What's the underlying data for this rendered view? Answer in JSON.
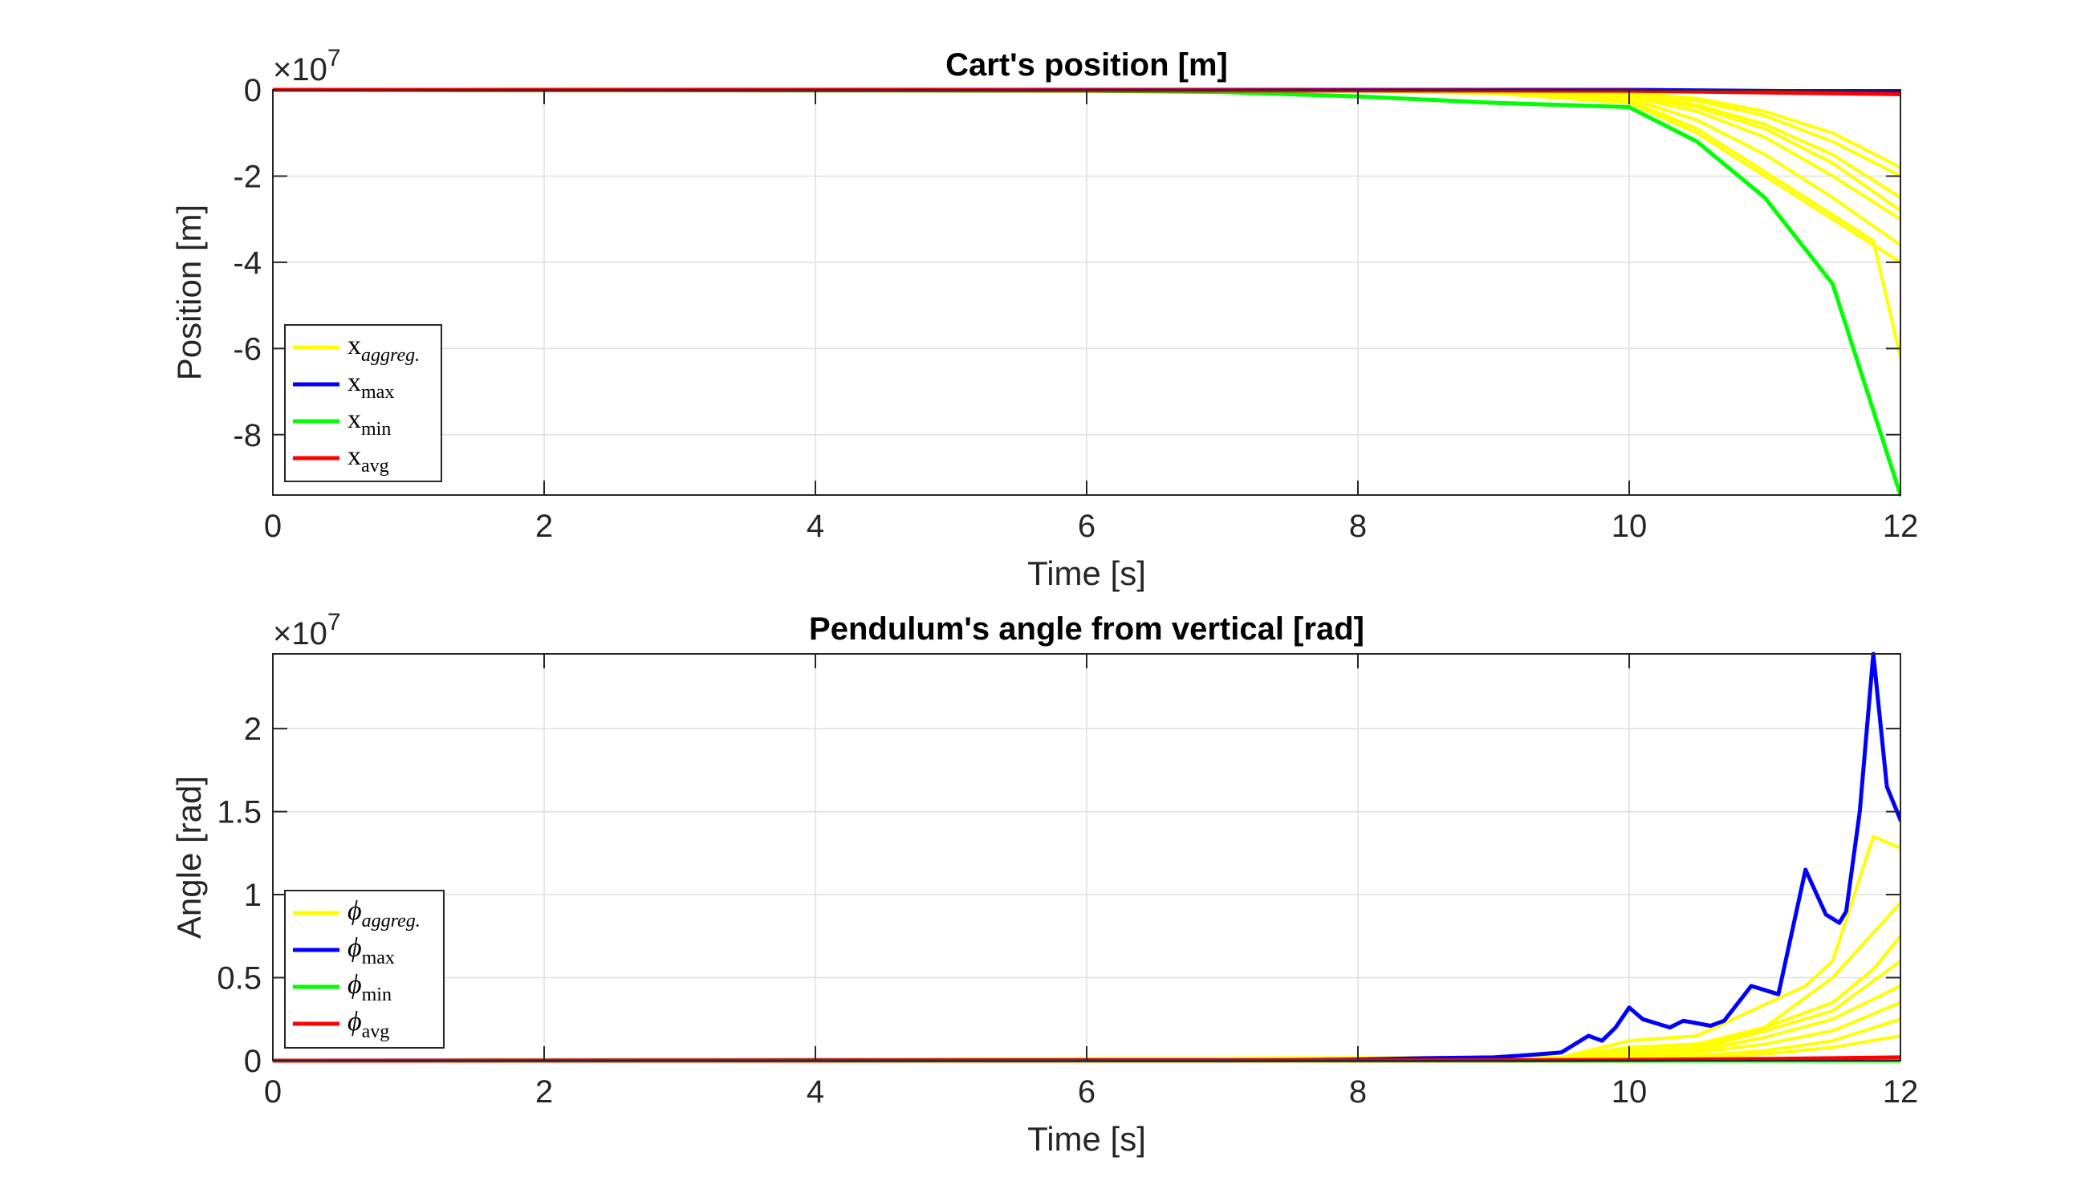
{
  "chart_data": [
    {
      "type": "line",
      "title": "Cart's position [m]",
      "xlabel": "Time [s]",
      "ylabel": "Position [m]",
      "exponent_label": "×10",
      "exponent_power": "7",
      "xlim": [
        0,
        12
      ],
      "ylim": [
        -9.4,
        0
      ],
      "xticks": [
        0,
        2,
        4,
        6,
        8,
        10,
        12
      ],
      "xtick_labels": [
        "0",
        "2",
        "4",
        "6",
        "8",
        "10",
        "12"
      ],
      "yticks": [
        0,
        -2,
        -4,
        -6,
        -8
      ],
      "ytick_labels": [
        "0",
        "-2",
        "-4",
        "-6",
        "-8"
      ],
      "grid": true,
      "legend_position": "lower-left",
      "legend": [
        {
          "base": "x",
          "sub": "aggreg.",
          "sub_italic": true,
          "color": "#ffff00"
        },
        {
          "base": "x",
          "sub": "max",
          "sub_italic": false,
          "color": "#0000ff"
        },
        {
          "base": "x",
          "sub": "min",
          "sub_italic": false,
          "color": "#00ff00"
        },
        {
          "base": "x",
          "sub": "avg",
          "sub_italic": false,
          "color": "#ff0000"
        }
      ],
      "series": [
        {
          "legend_index": 0,
          "color": "#ffff00",
          "x": [
            0,
            8,
            9,
            10,
            10.5,
            11,
            11.5,
            12
          ],
          "y": [
            0,
            -0.01,
            -0.03,
            -0.06,
            -0.2,
            -0.5,
            -1.0,
            -1.8
          ]
        },
        {
          "legend_index": 0,
          "color": "#ffff00",
          "x": [
            0,
            8,
            9,
            10,
            10.5,
            11,
            11.5,
            12
          ],
          "y": [
            0,
            -0.01,
            -0.04,
            -0.1,
            -0.35,
            -0.8,
            -1.5,
            -2.5
          ]
        },
        {
          "legend_index": 0,
          "color": "#ffff00",
          "x": [
            0,
            8,
            9,
            10,
            10.5,
            11,
            11.5,
            12
          ],
          "y": [
            0,
            -0.01,
            -0.05,
            -0.15,
            -0.5,
            -1.1,
            -2.0,
            -3.0
          ]
        },
        {
          "legend_index": 0,
          "color": "#ffff00",
          "x": [
            0,
            8,
            9,
            10,
            10.5,
            11,
            11.5,
            12
          ],
          "y": [
            0,
            -0.02,
            -0.06,
            -0.2,
            -0.7,
            -1.5,
            -2.5,
            -3.6
          ]
        },
        {
          "legend_index": 0,
          "color": "#ffff00",
          "x": [
            0,
            8,
            9,
            10,
            10.5,
            11,
            11.5,
            11.8,
            12
          ],
          "y": [
            0,
            -0.02,
            -0.08,
            -0.25,
            -0.9,
            -1.9,
            -2.9,
            -3.5,
            -6.2
          ]
        },
        {
          "legend_index": 0,
          "color": "#ffff00",
          "x": [
            0,
            8,
            9,
            10,
            10.5,
            11,
            11.5,
            12
          ],
          "y": [
            0,
            -0.02,
            -0.08,
            -0.3,
            -1.0,
            -2.0,
            -3.0,
            -4.0
          ]
        },
        {
          "legend_index": 0,
          "color": "#ffff00",
          "x": [
            0,
            8,
            9,
            10,
            10.5,
            11,
            11.5,
            12
          ],
          "y": [
            0,
            -0.01,
            -0.03,
            -0.08,
            -0.25,
            -0.6,
            -1.2,
            -2.0
          ]
        },
        {
          "legend_index": 0,
          "color": "#ffff00",
          "x": [
            0,
            8,
            9,
            10,
            10.5,
            11,
            11.5,
            12
          ],
          "y": [
            0,
            -0.01,
            -0.04,
            -0.12,
            -0.4,
            -0.9,
            -1.7,
            -2.8
          ]
        },
        {
          "legend_index": 1,
          "color": "#0000ff",
          "x": [
            0,
            10,
            12
          ],
          "y": [
            0,
            0,
            -0.05
          ]
        },
        {
          "legend_index": 2,
          "color": "#00ff00",
          "x": [
            0,
            6,
            7,
            8,
            9,
            10,
            10.5,
            11,
            11.5,
            12
          ],
          "y": [
            0,
            -0.02,
            -0.05,
            -0.15,
            -0.3,
            -0.4,
            -1.2,
            -2.5,
            -4.5,
            -9.4
          ]
        },
        {
          "legend_index": 3,
          "color": "#ff0000",
          "x": [
            0,
            10,
            12
          ],
          "y": [
            0,
            -0.02,
            -0.1
          ]
        }
      ]
    },
    {
      "type": "line",
      "title": "Pendulum's angle from vertical [rad]",
      "xlabel": "Time [s]",
      "ylabel": "Angle [rad]",
      "exponent_label": "×10",
      "exponent_power": "7",
      "xlim": [
        0,
        12
      ],
      "ylim": [
        0,
        2.45
      ],
      "xticks": [
        0,
        2,
        4,
        6,
        8,
        10,
        12
      ],
      "xtick_labels": [
        "0",
        "2",
        "4",
        "6",
        "8",
        "10",
        "12"
      ],
      "yticks": [
        0,
        0.5,
        1,
        1.5,
        2
      ],
      "ytick_labels": [
        "0",
        "0.5",
        "1",
        "1.5",
        "2"
      ],
      "grid": true,
      "legend_position": "lower-left",
      "legend": [
        {
          "base": "ϕ",
          "sub": "aggreg.",
          "sub_italic": true,
          "color": "#ffff00"
        },
        {
          "base": "ϕ",
          "sub": "max",
          "sub_italic": false,
          "color": "#0000ff"
        },
        {
          "base": "ϕ",
          "sub": "min",
          "sub_italic": false,
          "color": "#00ff00"
        },
        {
          "base": "ϕ",
          "sub": "avg",
          "sub_italic": false,
          "color": "#ff0000"
        }
      ],
      "series": [
        {
          "legend_index": 0,
          "color": "#ffff00",
          "x": [
            0,
            9.5,
            10,
            10.5,
            10.9,
            11.3,
            11.5,
            11.8,
            12
          ],
          "y": [
            0,
            0.02,
            0.12,
            0.15,
            0.3,
            0.45,
            0.6,
            1.35,
            1.28
          ]
        },
        {
          "legend_index": 0,
          "color": "#ffff00",
          "x": [
            0,
            9.5,
            10,
            10.5,
            11,
            11.5,
            12
          ],
          "y": [
            0,
            0.02,
            0.08,
            0.1,
            0.2,
            0.5,
            0.95
          ]
        },
        {
          "legend_index": 0,
          "color": "#ffff00",
          "x": [
            0,
            9.5,
            10,
            10.5,
            11,
            11.5,
            11.8,
            12
          ],
          "y": [
            0,
            0.02,
            0.06,
            0.08,
            0.2,
            0.35,
            0.55,
            0.75
          ]
        },
        {
          "legend_index": 0,
          "color": "#ffff00",
          "x": [
            0,
            9.5,
            10,
            10.5,
            11,
            11.5,
            12
          ],
          "y": [
            0,
            0.02,
            0.05,
            0.07,
            0.18,
            0.3,
            0.6
          ]
        },
        {
          "legend_index": 0,
          "color": "#ffff00",
          "x": [
            0,
            9.5,
            10,
            10.5,
            11,
            11.5,
            12
          ],
          "y": [
            0,
            0.01,
            0.04,
            0.06,
            0.14,
            0.25,
            0.45
          ]
        },
        {
          "legend_index": 0,
          "color": "#ffff00",
          "x": [
            0,
            9.5,
            10,
            10.5,
            11,
            11.5,
            12
          ],
          "y": [
            0,
            0.01,
            0.03,
            0.05,
            0.1,
            0.18,
            0.35
          ]
        },
        {
          "legend_index": 0,
          "color": "#ffff00",
          "x": [
            0,
            9.5,
            10,
            10.5,
            11,
            11.5,
            12
          ],
          "y": [
            0,
            0.01,
            0.02,
            0.03,
            0.06,
            0.12,
            0.25
          ]
        },
        {
          "legend_index": 0,
          "color": "#ffff00",
          "x": [
            0,
            9.5,
            10,
            10.5,
            11,
            11.5,
            12
          ],
          "y": [
            0,
            0.005,
            0.01,
            0.02,
            0.04,
            0.08,
            0.15
          ]
        },
        {
          "legend_index": 1,
          "color": "#0000ff",
          "x": [
            0,
            7.5,
            8,
            8.5,
            9,
            9.2,
            9.5,
            9.7,
            9.8,
            9.9,
            10,
            10.1,
            10.3,
            10.4,
            10.6,
            10.7,
            10.9,
            11.1,
            11.3,
            11.45,
            11.55,
            11.6,
            11.7,
            11.8,
            11.9,
            12
          ],
          "y": [
            0,
            0.003,
            0.007,
            0.015,
            0.02,
            0.03,
            0.05,
            0.15,
            0.12,
            0.2,
            0.32,
            0.25,
            0.2,
            0.24,
            0.21,
            0.24,
            0.45,
            0.4,
            1.15,
            0.88,
            0.83,
            0.9,
            1.5,
            2.45,
            1.65,
            1.45
          ]
        },
        {
          "legend_index": 2,
          "color": "#00ff00",
          "x": [
            0,
            12
          ],
          "y": [
            0,
            0
          ]
        },
        {
          "legend_index": 3,
          "color": "#ff0000",
          "x": [
            0,
            9,
            10,
            11,
            12
          ],
          "y": [
            0,
            0.002,
            0.005,
            0.01,
            0.02
          ]
        }
      ]
    }
  ]
}
